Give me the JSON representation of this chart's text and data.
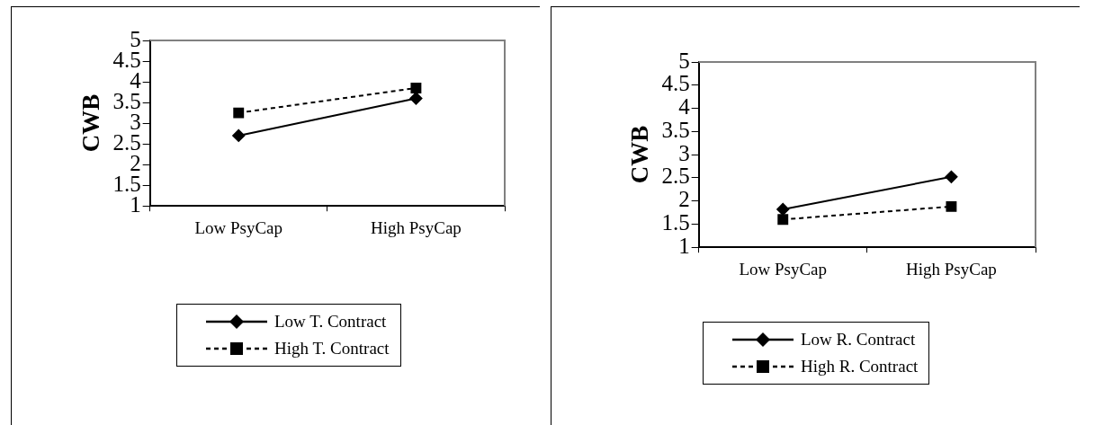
{
  "chart_data": [
    {
      "type": "line",
      "ylabel": "CWB",
      "categories": [
        "Low PsyCap",
        "High PsyCap"
      ],
      "ylim": [
        1,
        5
      ],
      "yticks": [
        1,
        1.5,
        2,
        2.5,
        3,
        3.5,
        4,
        4.5,
        5
      ],
      "grid": false,
      "legend": "bottom",
      "series": [
        {
          "name": "Low T. Contract",
          "color": "#000000",
          "values": [
            2.7,
            3.6
          ],
          "marker": "diamond",
          "line_style": "solid"
        },
        {
          "name": "High T. Contract",
          "color": "#000000",
          "values": [
            3.25,
            3.85
          ],
          "marker": "square",
          "line_style": "dashed"
        }
      ]
    },
    {
      "type": "line",
      "ylabel": "CWB",
      "categories": [
        "Low PsyCap",
        "High PsyCap"
      ],
      "ylim": [
        1,
        5
      ],
      "yticks": [
        1,
        1.5,
        2,
        2.5,
        3,
        3.5,
        4,
        4.5,
        5
      ],
      "grid": false,
      "legend": "bottom",
      "series": [
        {
          "name": "Low R. Contract",
          "color": "#000000",
          "values": [
            1.82,
            2.52
          ],
          "marker": "diamond",
          "line_style": "solid"
        },
        {
          "name": "High R. Contract",
          "color": "#000000",
          "values": [
            1.6,
            1.88
          ],
          "marker": "square",
          "line_style": "dashed"
        }
      ]
    }
  ]
}
